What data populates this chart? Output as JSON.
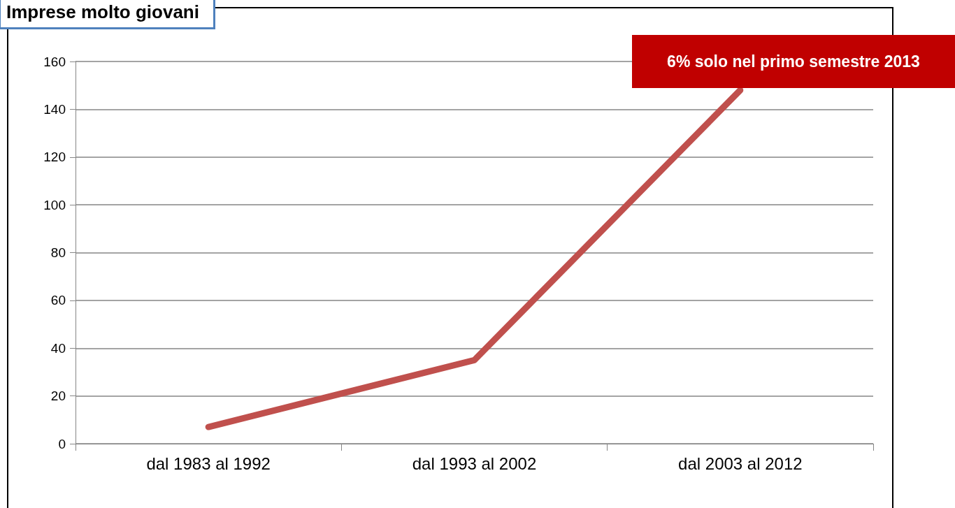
{
  "chart_data": {
    "type": "line",
    "title": "Imprese molto giovani",
    "categories": [
      "dal 1983 al 1992",
      "dal 1993 al 2002",
      "dal 2003 al 2012"
    ],
    "series": [
      {
        "color": "#c0504d",
        "values": [
          7,
          35,
          148
        ]
      }
    ],
    "ylim": [
      0,
      160
    ],
    "yticks": [
      0,
      20,
      40,
      60,
      80,
      100,
      120,
      140,
      160
    ],
    "grid": "y",
    "line_style": "solid",
    "annotations": [
      "6% solo nel primo semestre 2013"
    ]
  }
}
